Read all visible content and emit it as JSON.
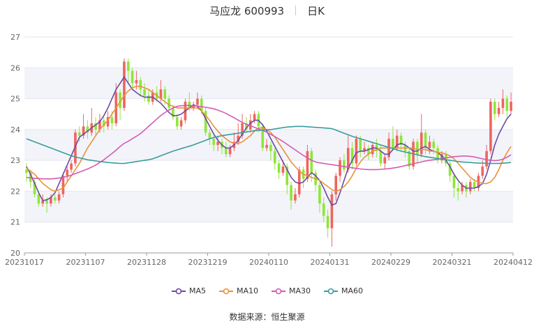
{
  "header": {
    "stock": "马应龙 600993",
    "period": "日K"
  },
  "source": {
    "label": "数据来源：",
    "name": "恒生聚源"
  },
  "colors": {
    "up": "#f0645f",
    "down": "#8ee63a",
    "MA5": "#6b4aa3",
    "MA10": "#e8923a",
    "MA30": "#d45ab3",
    "MA60": "#3a9c9c"
  },
  "chart_data": {
    "type": "candlestick",
    "ylim": [
      20,
      27
    ],
    "yticks": [
      "20",
      "21",
      "22",
      "23",
      "24",
      "25",
      "26",
      "27"
    ],
    "xticks": [
      {
        "index": 0,
        "label": "20231017"
      },
      {
        "index": 15,
        "label": "20231107"
      },
      {
        "index": 30,
        "label": "20231128"
      },
      {
        "index": 45,
        "label": "20231219"
      },
      {
        "index": 60,
        "label": "20240110"
      },
      {
        "index": 75,
        "label": "20240131"
      },
      {
        "index": 90,
        "label": "20240229"
      },
      {
        "index": 105,
        "label": "20240321"
      },
      {
        "index": 119,
        "label": "20240412"
      }
    ],
    "candles": [
      [
        22.7,
        22.6,
        22.9,
        22.3
      ],
      [
        22.6,
        22.3,
        22.7,
        22.1
      ],
      [
        22.3,
        21.9,
        22.4,
        21.8
      ],
      [
        21.9,
        21.6,
        22.0,
        21.5
      ],
      [
        21.6,
        21.7,
        21.9,
        21.5
      ],
      [
        21.7,
        21.6,
        21.8,
        21.3
      ],
      [
        21.6,
        21.8,
        21.9,
        21.5
      ],
      [
        21.8,
        21.7,
        21.9,
        21.6
      ],
      [
        21.7,
        21.9,
        22.0,
        21.6
      ],
      [
        21.9,
        22.5,
        22.6,
        21.8
      ],
      [
        22.5,
        22.7,
        22.8,
        22.3
      ],
      [
        22.7,
        22.9,
        23.0,
        22.6
      ],
      [
        22.9,
        23.9,
        24.0,
        22.8
      ],
      [
        23.9,
        23.8,
        24.1,
        23.6
      ],
      [
        23.8,
        24.1,
        24.5,
        23.7
      ],
      [
        24.1,
        23.9,
        24.3,
        23.7
      ],
      [
        23.9,
        24.2,
        24.7,
        23.8
      ],
      [
        24.2,
        24.0,
        24.4,
        23.8
      ],
      [
        24.0,
        24.3,
        24.5,
        23.9
      ],
      [
        24.3,
        24.1,
        24.4,
        23.9
      ],
      [
        24.1,
        24.4,
        24.6,
        24.0
      ],
      [
        24.4,
        24.2,
        24.6,
        24.0
      ],
      [
        24.2,
        25.2,
        25.5,
        24.1
      ],
      [
        25.2,
        24.7,
        25.3,
        24.3
      ],
      [
        24.7,
        26.2,
        26.3,
        24.6
      ],
      [
        26.2,
        25.9,
        26.3,
        25.5
      ],
      [
        25.9,
        25.5,
        26.0,
        25.3
      ],
      [
        25.5,
        25.6,
        25.9,
        25.3
      ],
      [
        25.6,
        25.3,
        25.7,
        25.1
      ],
      [
        25.3,
        25.1,
        25.5,
        24.9
      ],
      [
        25.1,
        24.9,
        25.3,
        24.8
      ],
      [
        24.9,
        25.2,
        25.3,
        24.8
      ],
      [
        25.2,
        25.0,
        25.4,
        24.9
      ],
      [
        25.0,
        25.3,
        25.6,
        24.9
      ],
      [
        25.3,
        25.0,
        25.4,
        24.8
      ],
      [
        25.0,
        24.7,
        25.1,
        24.6
      ],
      [
        24.7,
        24.4,
        24.8,
        24.3
      ],
      [
        24.4,
        24.1,
        24.5,
        24.0
      ],
      [
        24.1,
        24.3,
        24.4,
        24.0
      ],
      [
        24.3,
        24.9,
        25.0,
        24.2
      ],
      [
        24.9,
        24.7,
        25.2,
        24.6
      ],
      [
        24.7,
        24.8,
        24.9,
        24.6
      ],
      [
        24.8,
        25.0,
        25.2,
        24.7
      ],
      [
        25.0,
        24.6,
        25.1,
        24.5
      ],
      [
        24.6,
        23.9,
        24.7,
        23.8
      ],
      [
        23.9,
        23.7,
        24.0,
        23.5
      ],
      [
        23.7,
        23.5,
        23.8,
        23.3
      ],
      [
        23.5,
        23.6,
        23.8,
        23.3
      ],
      [
        23.6,
        23.4,
        23.7,
        23.2
      ],
      [
        23.4,
        23.2,
        23.6,
        23.1
      ],
      [
        23.2,
        23.4,
        23.5,
        23.1
      ],
      [
        23.4,
        23.6,
        23.9,
        23.3
      ],
      [
        23.6,
        23.8,
        24.2,
        23.5
      ],
      [
        23.8,
        24.2,
        24.5,
        23.7
      ],
      [
        24.2,
        24.0,
        24.4,
        23.9
      ],
      [
        24.0,
        24.3,
        24.5,
        23.9
      ],
      [
        24.3,
        24.5,
        24.6,
        24.2
      ],
      [
        24.5,
        24.1,
        24.6,
        23.9
      ],
      [
        24.1,
        23.4,
        24.2,
        23.3
      ],
      [
        23.4,
        23.5,
        23.7,
        23.3
      ],
      [
        23.5,
        23.3,
        23.6,
        23.0
      ],
      [
        23.3,
        22.9,
        23.4,
        22.7
      ],
      [
        22.9,
        22.6,
        23.0,
        22.4
      ],
      [
        22.6,
        22.8,
        23.0,
        22.5
      ],
      [
        22.8,
        22.2,
        22.9,
        21.9
      ],
      [
        22.2,
        21.7,
        22.3,
        21.4
      ],
      [
        21.7,
        21.9,
        22.1,
        21.6
      ],
      [
        21.9,
        22.7,
        22.8,
        21.8
      ],
      [
        22.7,
        22.4,
        22.8,
        22.1
      ],
      [
        22.4,
        23.3,
        23.5,
        22.3
      ],
      [
        23.3,
        22.6,
        23.4,
        22.3
      ],
      [
        22.6,
        22.2,
        22.7,
        22.0
      ],
      [
        22.2,
        21.6,
        22.3,
        21.3
      ],
      [
        21.6,
        21.2,
        21.8,
        21.0
      ],
      [
        21.2,
        20.8,
        21.4,
        20.5
      ],
      [
        20.8,
        21.9,
        22.0,
        20.2
      ],
      [
        21.9,
        22.5,
        22.6,
        21.7
      ],
      [
        22.5,
        23.0,
        23.1,
        22.3
      ],
      [
        23.0,
        22.7,
        23.2,
        22.6
      ],
      [
        22.7,
        23.4,
        23.8,
        22.6
      ],
      [
        23.4,
        22.9,
        23.6,
        22.7
      ],
      [
        22.9,
        23.7,
        23.8,
        22.8
      ],
      [
        23.7,
        23.3,
        23.8,
        23.1
      ],
      [
        23.3,
        23.4,
        23.6,
        23.2
      ],
      [
        23.4,
        23.2,
        23.5,
        23.0
      ],
      [
        23.2,
        23.5,
        23.6,
        23.1
      ],
      [
        23.5,
        23.3,
        23.7,
        23.1
      ],
      [
        23.3,
        22.9,
        23.5,
        22.8
      ],
      [
        22.9,
        23.1,
        23.2,
        22.7
      ],
      [
        23.1,
        23.7,
        23.9,
        23.0
      ],
      [
        23.7,
        23.4,
        24.1,
        23.3
      ],
      [
        23.4,
        23.8,
        24.0,
        23.3
      ],
      [
        23.8,
        23.5,
        23.9,
        23.3
      ],
      [
        23.5,
        23.3,
        23.6,
        23.1
      ],
      [
        23.3,
        22.8,
        23.4,
        22.7
      ],
      [
        22.8,
        23.6,
        23.7,
        22.7
      ],
      [
        23.6,
        23.2,
        23.7,
        22.9
      ],
      [
        23.2,
        23.9,
        24.5,
        23.1
      ],
      [
        23.9,
        23.4,
        24.0,
        23.2
      ],
      [
        23.4,
        23.6,
        23.8,
        23.2
      ],
      [
        23.6,
        23.4,
        23.7,
        23.2
      ],
      [
        23.4,
        23.0,
        23.5,
        22.9
      ],
      [
        23.0,
        23.2,
        23.3,
        22.9
      ],
      [
        23.2,
        22.9,
        23.3,
        22.8
      ],
      [
        22.9,
        22.5,
        23.0,
        22.3
      ],
      [
        22.5,
        22.1,
        22.6,
        21.8
      ],
      [
        22.1,
        22.0,
        22.3,
        21.7
      ],
      [
        22.0,
        22.2,
        22.3,
        21.9
      ],
      [
        22.2,
        22.0,
        22.3,
        21.8
      ],
      [
        22.0,
        22.3,
        22.4,
        21.9
      ],
      [
        22.3,
        22.1,
        22.4,
        22.0
      ],
      [
        22.1,
        22.5,
        22.6,
        22.0
      ],
      [
        22.5,
        22.8,
        23.0,
        22.4
      ],
      [
        22.8,
        23.3,
        23.5,
        22.7
      ],
      [
        23.3,
        24.9,
        25.0,
        23.2
      ],
      [
        24.9,
        24.5,
        25.0,
        24.3
      ],
      [
        24.5,
        24.7,
        24.9,
        24.4
      ],
      [
        24.7,
        25.0,
        25.3,
        24.5
      ],
      [
        25.0,
        24.6,
        25.1,
        24.4
      ],
      [
        24.6,
        24.9,
        25.2,
        24.5
      ]
    ],
    "series": [
      {
        "name": "MA5",
        "values": [
          22.8,
          22.55,
          22.25,
          21.95,
          21.7,
          21.72,
          21.8,
          21.95,
          22.25,
          22.55,
          22.85,
          23.15,
          23.45,
          23.75,
          23.85,
          23.95,
          24.05,
          24.15,
          24.25,
          24.45,
          24.7,
          25.0,
          25.3,
          25.5,
          25.7,
          25.5,
          25.3,
          25.2,
          25.1,
          25.05,
          25.05,
          25.05,
          24.95,
          24.85,
          24.7,
          24.55,
          24.45,
          24.45,
          24.5,
          24.6,
          24.7,
          24.8,
          24.75,
          24.6,
          24.35,
          24.1,
          23.85,
          23.65,
          23.5,
          23.4,
          23.4,
          23.5,
          23.65,
          23.85,
          24.05,
          24.2,
          24.3,
          24.3,
          24.15,
          23.95,
          23.7,
          23.45,
          23.2,
          22.95,
          22.7,
          22.45,
          22.3,
          22.25,
          22.3,
          22.45,
          22.6,
          22.5,
          22.35,
          22.1,
          21.8,
          21.55,
          21.6,
          21.95,
          22.35,
          22.75,
          23.0,
          23.25,
          23.3,
          23.3,
          23.35,
          23.4,
          23.4,
          23.3,
          23.2,
          23.2,
          23.35,
          23.5,
          23.55,
          23.5,
          23.4,
          23.3,
          23.3,
          23.4,
          23.45,
          23.35,
          23.3,
          23.25,
          23.15,
          23.0,
          22.8,
          22.55,
          22.35,
          22.2,
          22.1,
          22.1,
          22.1,
          22.15,
          22.25,
          22.55,
          23.0,
          23.5,
          23.85,
          24.1,
          24.35,
          24.5
        ]
      },
      {
        "name": "MA10",
        "values": [
          22.75,
          22.65,
          22.55,
          22.4,
          22.25,
          22.15,
          22.05,
          22.0,
          22.05,
          22.1,
          22.3,
          22.5,
          22.7,
          22.9,
          23.15,
          23.4,
          23.6,
          23.8,
          24.0,
          24.15,
          24.3,
          24.5,
          24.7,
          24.9,
          25.1,
          25.25,
          25.35,
          25.4,
          25.4,
          25.35,
          25.3,
          25.2,
          25.1,
          25.0,
          24.9,
          24.8,
          24.75,
          24.7,
          24.7,
          24.7,
          24.7,
          24.7,
          24.7,
          24.6,
          24.45,
          24.3,
          24.1,
          23.95,
          23.8,
          23.7,
          23.6,
          23.55,
          23.55,
          23.6,
          23.7,
          23.8,
          23.95,
          24.05,
          24.05,
          24.0,
          23.9,
          23.75,
          23.55,
          23.35,
          23.15,
          22.95,
          22.8,
          22.65,
          22.55,
          22.5,
          22.45,
          22.4,
          22.35,
          22.25,
          22.15,
          22.05,
          22.0,
          22.05,
          22.15,
          22.3,
          22.5,
          22.75,
          22.95,
          23.1,
          23.2,
          23.3,
          23.35,
          23.4,
          23.4,
          23.4,
          23.4,
          23.4,
          23.4,
          23.4,
          23.4,
          23.4,
          23.35,
          23.35,
          23.35,
          23.3,
          23.3,
          23.25,
          23.25,
          23.2,
          23.15,
          23.05,
          22.9,
          22.75,
          22.6,
          22.45,
          22.35,
          22.3,
          22.25,
          22.25,
          22.3,
          22.45,
          22.7,
          23.0,
          23.25,
          23.45
        ]
      },
      {
        "name": "MA30",
        "values": [
          22.45,
          22.43,
          22.42,
          22.41,
          22.4,
          22.4,
          22.4,
          22.41,
          22.43,
          22.45,
          22.48,
          22.52,
          22.57,
          22.62,
          22.67,
          22.72,
          22.78,
          22.85,
          22.93,
          23.02,
          23.12,
          23.22,
          23.33,
          23.45,
          23.55,
          23.62,
          23.7,
          23.78,
          23.87,
          23.98,
          24.1,
          24.22,
          24.34,
          24.45,
          24.55,
          24.63,
          24.7,
          24.75,
          24.77,
          24.78,
          24.78,
          24.77,
          24.76,
          24.74,
          24.72,
          24.7,
          24.67,
          24.63,
          24.58,
          24.52,
          24.45,
          24.38,
          24.3,
          24.23,
          24.17,
          24.12,
          24.07,
          24.02,
          23.97,
          23.91,
          23.84,
          23.77,
          23.69,
          23.61,
          23.52,
          23.43,
          23.34,
          23.25,
          23.16,
          23.08,
          23.0,
          22.95,
          22.92,
          22.9,
          22.88,
          22.86,
          22.84,
          22.82,
          22.8,
          22.78,
          22.76,
          22.74,
          22.72,
          22.71,
          22.7,
          22.7,
          22.7,
          22.71,
          22.72,
          22.73,
          22.75,
          22.77,
          22.8,
          22.83,
          22.86,
          22.89,
          22.92,
          22.95,
          22.98,
          23.0,
          23.02,
          23.04,
          23.06,
          23.08,
          23.1,
          23.12,
          23.13,
          23.14,
          23.14,
          23.13,
          23.11,
          23.08,
          23.05,
          23.02,
          23.0,
          22.99,
          23.0,
          23.04,
          23.1,
          23.18
        ]
      },
      {
        "name": "MA60",
        "values": [
          23.7,
          23.65,
          23.6,
          23.55,
          23.5,
          23.45,
          23.4,
          23.35,
          23.3,
          23.25,
          23.2,
          23.15,
          23.11,
          23.08,
          23.05,
          23.02,
          23.0,
          22.98,
          22.96,
          22.95,
          22.93,
          22.92,
          22.91,
          22.9,
          22.9,
          22.92,
          22.94,
          22.96,
          22.98,
          23.0,
          23.02,
          23.05,
          23.1,
          23.15,
          23.2,
          23.25,
          23.3,
          23.34,
          23.38,
          23.42,
          23.46,
          23.5,
          23.55,
          23.6,
          23.65,
          23.7,
          23.74,
          23.77,
          23.8,
          23.82,
          23.84,
          23.86,
          23.88,
          23.9,
          23.92,
          23.94,
          23.96,
          23.97,
          23.98,
          23.99,
          24.0,
          24.02,
          24.04,
          24.06,
          24.08,
          24.09,
          24.1,
          24.1,
          24.1,
          24.09,
          24.08,
          24.07,
          24.06,
          24.05,
          24.04,
          24.03,
          23.98,
          23.93,
          23.88,
          23.83,
          23.78,
          23.74,
          23.7,
          23.66,
          23.62,
          23.58,
          23.54,
          23.5,
          23.46,
          23.42,
          23.38,
          23.34,
          23.3,
          23.27,
          23.24,
          23.21,
          23.18,
          23.15,
          23.12,
          23.1,
          23.08,
          23.06,
          23.04,
          23.02,
          23.0,
          22.98,
          22.96,
          22.95,
          22.94,
          22.93,
          22.92,
          22.91,
          22.91,
          22.9,
          22.9,
          22.9,
          22.9,
          22.91,
          22.92,
          22.93
        ]
      }
    ],
    "legend": [
      "MA5",
      "MA10",
      "MA30",
      "MA60"
    ],
    "legend_position": "bottom"
  }
}
